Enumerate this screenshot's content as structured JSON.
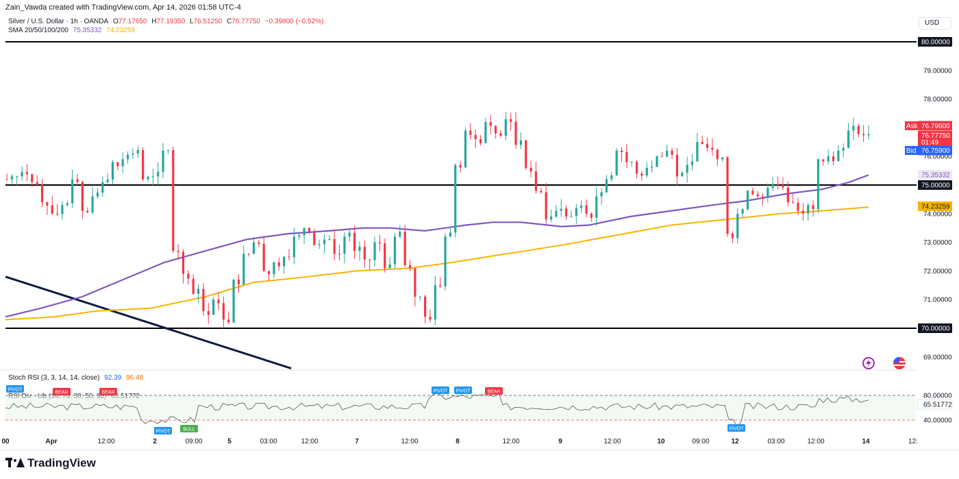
{
  "header": {
    "attribution": "Zain_Vawda created with TradingView.com, Apr 14, 2026 01:58 UTC-4"
  },
  "legend": {
    "symbol": "Silver / U.S. Dollar · 1h · OANDA",
    "open_label": "O",
    "open": "77.17650",
    "high_label": "H",
    "high": "77.19350",
    "low_label": "L",
    "low": "76.51250",
    "close_label": "C",
    "close": "76.77750",
    "change": "−0.39800 (−0.52%)",
    "sma_label": "SMA 20/50/100/200",
    "sma_val_1": "75.35332",
    "sma_val_2": "74.23259"
  },
  "currency": "USD",
  "stoch": {
    "label": "Stoch RSI (3, 3, 14, 14, close)",
    "k": "92.39",
    "d": "96.48"
  },
  "rsi": {
    "label": "RSI Div - Lib (14, 70, 30, 50, 90)",
    "value_badge": "65.51772",
    "axis_top": "80.00000",
    "axis_mid": "65.51772",
    "axis_bottom": "40.00000"
  },
  "tags": {
    "ask_label": "Ask",
    "ask": "76.79600",
    "last": "76.77750",
    "countdown": "01:49",
    "bid_label": "Bid",
    "bid": "76.75900",
    "sma_purple": "75.35332",
    "sma_orange": "74.23259",
    "level_80": "80.00000",
    "level_75": "75.00000",
    "level_70": "70.00000"
  },
  "markers": [
    "PIVOT",
    "BEAR",
    "BEAR",
    "PIVOT",
    "BULL",
    "PIVOT",
    "PIVOT",
    "BEAR",
    "PIVOT"
  ],
  "colors": {
    "up": "#26a69a",
    "down": "#f23645",
    "sma_purple": "#7e57c2",
    "sma_orange": "#f5b301",
    "ask": "#f23645",
    "bid": "#2962ff"
  },
  "brand": "TradingView",
  "chart_data": {
    "type": "candlestick",
    "title": "Silver / U.S. Dollar · 1h · OANDA",
    "y_ticks": [
      "80.00000",
      "79.00000",
      "78.00000",
      "77.00000",
      "76.00000",
      "75.00000",
      "74.00000",
      "73.00000",
      "72.00000",
      "71.00000",
      "70.00000",
      "69.00000"
    ],
    "x_ticks": [
      "00",
      "Apr",
      "12:00",
      "2",
      "09:00",
      "5",
      "03:00",
      "12:00",
      "7",
      "12:00",
      "8",
      "12:00",
      "9",
      "12:00",
      "10",
      "09:00",
      "12",
      "03:00",
      "12:00",
      "14",
      "12:"
    ],
    "ylim": [
      68.6,
      80.7
    ],
    "horizontal_levels": [
      80,
      75,
      70
    ],
    "close_path": [
      75.2,
      75.3,
      75.45,
      75.1,
      74.4,
      74.0,
      74.3,
      75.2,
      74.1,
      74.6,
      75.1,
      75.8,
      75.9,
      76.1,
      75.2,
      75.3,
      76.2,
      72.7,
      71.9,
      71.2,
      70.6,
      71.0,
      70.3,
      71.7,
      72.6,
      73.0,
      72.0,
      72.3,
      72.5,
      73.2,
      73.5,
      72.9,
      73.1,
      72.6,
      73.2,
      72.7,
      72.4,
      73.0,
      72.1,
      73.2,
      72.2,
      71.1,
      70.4,
      71.5,
      73.2,
      75.7,
      76.9,
      76.6,
      77.2,
      76.8,
      77.3,
      76.4,
      75.6,
      74.8,
      73.8,
      74.1,
      73.9,
      74.2,
      74.0,
      74.6,
      75.2,
      76.2,
      75.8,
      75.4,
      75.6,
      76.0,
      76.2,
      75.3,
      75.7,
      76.5,
      76.3,
      75.9,
      73.3,
      74.0,
      74.8,
      74.6,
      74.9,
      75.0,
      74.4,
      74.1,
      74.3,
      75.9,
      76.0,
      76.2,
      76.9,
      76.78
    ],
    "sma_purple": [
      [
        8,
        70.4
      ],
      [
        60,
        70.7
      ],
      [
        120,
        71.1
      ],
      [
        180,
        71.7
      ],
      [
        240,
        72.3
      ],
      [
        300,
        72.7
      ],
      [
        360,
        73.1
      ],
      [
        420,
        73.3
      ],
      [
        480,
        73.4
      ],
      [
        530,
        73.5
      ],
      [
        570,
        73.5
      ],
      [
        620,
        73.4
      ],
      [
        680,
        73.6
      ],
      [
        720,
        73.7
      ],
      [
        760,
        73.7
      ],
      [
        820,
        73.55
      ],
      [
        860,
        73.6
      ],
      [
        920,
        73.9
      ],
      [
        980,
        74.1
      ],
      [
        1040,
        74.3
      ],
      [
        1090,
        74.45
      ],
      [
        1150,
        74.7
      ],
      [
        1200,
        74.85
      ],
      [
        1240,
        75.1
      ],
      [
        1268,
        75.35
      ]
    ],
    "sma_orange": [
      [
        8,
        70.3
      ],
      [
        80,
        70.4
      ],
      [
        140,
        70.6
      ],
      [
        220,
        70.7
      ],
      [
        300,
        71.1
      ],
      [
        370,
        71.6
      ],
      [
        450,
        71.8
      ],
      [
        520,
        72.0
      ],
      [
        600,
        72.1
      ],
      [
        660,
        72.3
      ],
      [
        740,
        72.6
      ],
      [
        820,
        72.9
      ],
      [
        900,
        73.25
      ],
      [
        980,
        73.6
      ],
      [
        1060,
        73.8
      ],
      [
        1140,
        74.0
      ],
      [
        1200,
        74.1
      ],
      [
        1268,
        74.23
      ]
    ],
    "trendline": [
      [
        8,
        71.8
      ],
      [
        425,
        68.6
      ]
    ],
    "rsi_overbought": 80,
    "rsi_oversold": 40,
    "rsi_last": 65.51772
  }
}
